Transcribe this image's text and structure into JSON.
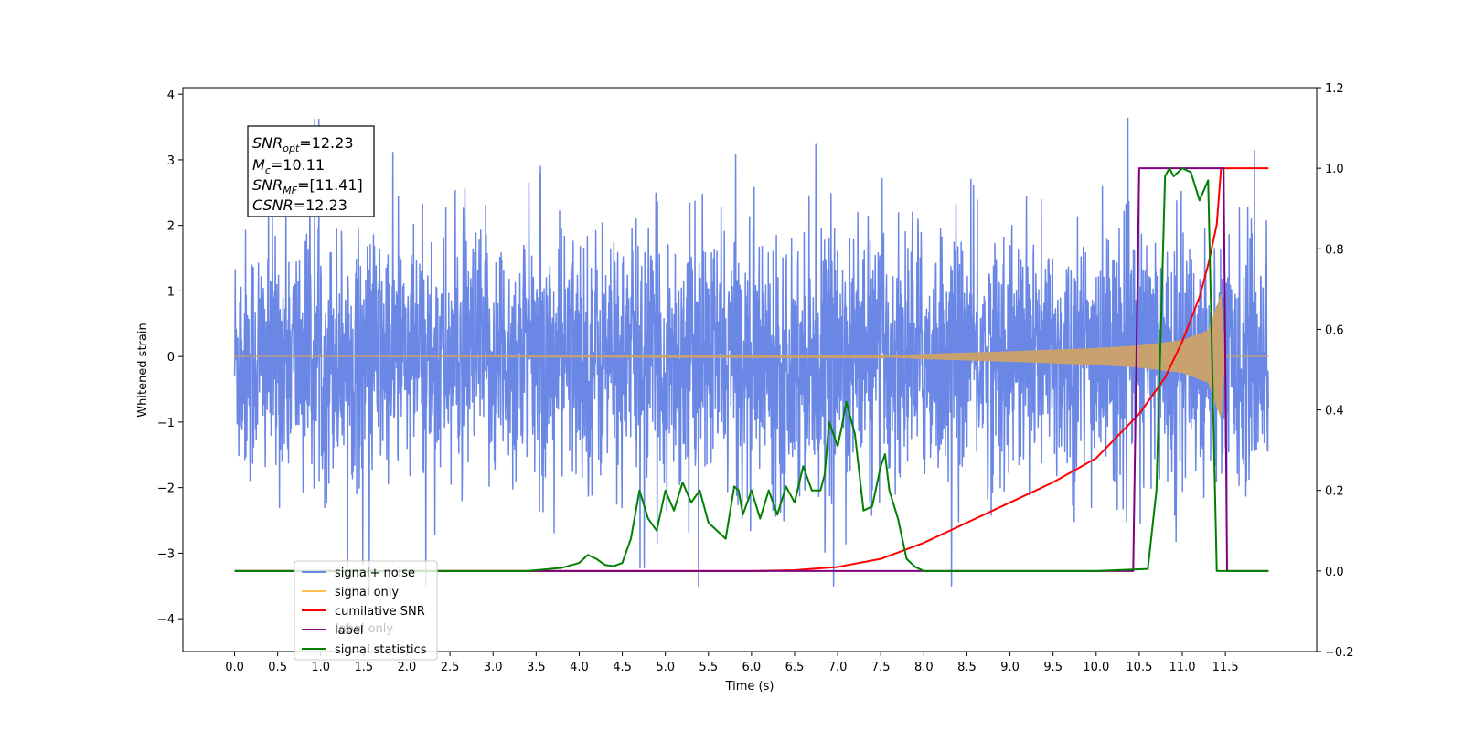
{
  "chart_data": {
    "type": "line",
    "xlabel": "Time (s)",
    "ylabel": "Whitened strain",
    "xlim": [
      -0.6,
      12.56
    ],
    "ylim": [
      -4.5,
      4.1
    ],
    "y2lim": [
      -0.2,
      1.2
    ],
    "xticks": [
      "0.0",
      "0.5",
      "1.0",
      "1.5",
      "2.0",
      "2.5",
      "3.0",
      "3.5",
      "4.0",
      "4.5",
      "5.0",
      "5.5",
      "6.0",
      "6.5",
      "7.0",
      "7.5",
      "8.0",
      "8.5",
      "9.0",
      "9.5",
      "10.0",
      "10.5",
      "11.0",
      "11.5"
    ],
    "yticks": [
      "−4",
      "−3",
      "−2",
      "−1",
      "0",
      "1",
      "2",
      "3",
      "4"
    ],
    "y2ticks": [
      "−0.2",
      "0.0",
      "0.2",
      "0.4",
      "0.6",
      "0.8",
      "1.0",
      "1.2"
    ],
    "grid": false,
    "legend_position": "lower-left",
    "annotation": {
      "lines": [
        {
          "base": "SNR",
          "sub": "opt",
          "rest": "=12.23"
        },
        {
          "base": "M",
          "sub": "c",
          "rest": "=10.11"
        },
        {
          "base": "SNR",
          "sub": "MF",
          "rest": "=[11.41]"
        },
        {
          "base": "CSNR",
          "sub": "",
          "rest": "=12.23"
        }
      ]
    },
    "legend": [
      {
        "label": "signal+ noise",
        "color": "#6a87e6"
      },
      {
        "label": "signal only",
        "color": "#ffc04d"
      },
      {
        "label": "cumilative SNR",
        "color": "#ff0000"
      },
      {
        "label": "label",
        "color": "#800080"
      },
      {
        "label": "signal statistics",
        "color": "#008000"
      }
    ],
    "hidden_legend_text": "label only",
    "series": [
      {
        "name": "signal+ noise",
        "axis": "left",
        "color": "#6a87e6",
        "description": "noisy whitened strain, samples 0.0–12.0 s, amplitude about ±2, spikes to ±3.6",
        "x_range": [
          0.0,
          12.0
        ],
        "approx_range": [
          -3.5,
          3.65
        ]
      },
      {
        "name": "signal only",
        "axis": "left",
        "color": "#c9a16f",
        "description": "chirp signal, near zero until ~7.5 s, grows to about ±1 at 11.45 s, then zero",
        "envelope": {
          "x": [
            0.0,
            7.5,
            8.0,
            9.0,
            10.0,
            10.5,
            11.0,
            11.3,
            11.45,
            11.5,
            12.0
          ],
          "y": [
            0.0,
            0.01,
            0.04,
            0.08,
            0.13,
            0.17,
            0.25,
            0.4,
            0.95,
            0.0,
            0.0
          ]
        }
      },
      {
        "name": "cumilative SNR",
        "axis": "right",
        "color": "#ff0000",
        "x": [
          0.0,
          6.0,
          6.5,
          7.0,
          7.5,
          8.0,
          8.5,
          9.0,
          9.5,
          10.0,
          10.5,
          10.8,
          11.0,
          11.2,
          11.3,
          11.4,
          11.45,
          12.0
        ],
        "y": [
          0.0,
          0.0,
          0.002,
          0.01,
          0.03,
          0.07,
          0.12,
          0.17,
          0.22,
          0.28,
          0.39,
          0.48,
          0.57,
          0.68,
          0.76,
          0.86,
          1.0,
          1.0
        ]
      },
      {
        "name": "label",
        "axis": "right",
        "color": "#800080",
        "x": [
          0.0,
          10.43,
          10.5,
          11.48,
          11.52,
          12.0
        ],
        "y": [
          0.0,
          0.0,
          1.0,
          1.0,
          0.0,
          0.0
        ]
      },
      {
        "name": "signal statistics",
        "axis": "right",
        "color": "#008000",
        "x": [
          0.0,
          3.4,
          3.6,
          3.8,
          4.0,
          4.1,
          4.2,
          4.3,
          4.4,
          4.5,
          4.6,
          4.7,
          4.8,
          4.9,
          5.0,
          5.1,
          5.2,
          5.3,
          5.4,
          5.5,
          5.6,
          5.7,
          5.8,
          5.85,
          5.9,
          6.0,
          6.1,
          6.2,
          6.3,
          6.4,
          6.5,
          6.6,
          6.7,
          6.8,
          6.85,
          6.9,
          7.0,
          7.05,
          7.1,
          7.2,
          7.3,
          7.4,
          7.5,
          7.55,
          7.6,
          7.7,
          7.8,
          7.9,
          8.0,
          8.2,
          9.0,
          10.0,
          10.6,
          10.7,
          10.8,
          10.85,
          10.9,
          11.0,
          11.1,
          11.2,
          11.3,
          11.4,
          11.45,
          11.5,
          11.55,
          12.0
        ],
        "y": [
          0.0,
          0.0,
          0.004,
          0.008,
          0.02,
          0.04,
          0.03,
          0.015,
          0.012,
          0.02,
          0.08,
          0.2,
          0.13,
          0.1,
          0.2,
          0.15,
          0.22,
          0.17,
          0.2,
          0.12,
          0.1,
          0.08,
          0.21,
          0.2,
          0.14,
          0.2,
          0.13,
          0.2,
          0.14,
          0.21,
          0.17,
          0.26,
          0.2,
          0.2,
          0.24,
          0.37,
          0.31,
          0.36,
          0.42,
          0.34,
          0.15,
          0.16,
          0.26,
          0.29,
          0.2,
          0.13,
          0.03,
          0.01,
          0.0,
          0.0,
          0.0,
          0.0,
          0.005,
          0.2,
          0.98,
          1.0,
          0.98,
          1.0,
          0.99,
          0.92,
          0.97,
          0.0,
          0.0,
          0.0,
          0.0,
          0.0
        ]
      }
    ]
  }
}
